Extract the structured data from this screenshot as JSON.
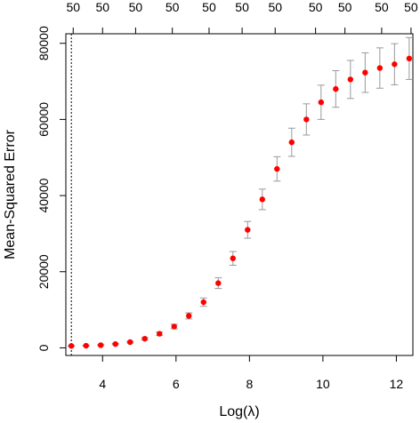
{
  "chart_data": {
    "type": "scatter",
    "subtitle": "",
    "xlabel": "Log(λ)",
    "ylabel": "Mean-Squared Error",
    "xlim": [
      3.0,
      12.45
    ],
    "ylim": [
      -2000,
      82500
    ],
    "x_ticks": [
      4,
      6,
      8,
      10,
      12
    ],
    "y_ticks": [
      0,
      20000,
      40000,
      60000,
      80000
    ],
    "x_tick_labels": [
      "4",
      "6",
      "8",
      "10",
      "12"
    ],
    "y_tick_labels": [
      "0",
      "20000",
      "40000",
      "60000",
      "80000"
    ],
    "top_axis": {
      "ticks": [
        3.2,
        4.0,
        4.9,
        5.9,
        6.9,
        7.8,
        8.7,
        9.8,
        10.6,
        11.6,
        12.4
      ],
      "labels": [
        "50",
        "50",
        "50",
        "50",
        "50",
        "50",
        "50",
        "50",
        "50",
        "50",
        "50"
      ]
    },
    "reference_line_x": 3.15,
    "point_color": "#ff0000",
    "errorbar_color": "#999999",
    "grid": false,
    "legend": "none",
    "series": [
      {
        "x": [
          3.15,
          3.55,
          3.95,
          4.35,
          4.75,
          5.15,
          5.55,
          5.95,
          6.35,
          6.75,
          7.15,
          7.55,
          7.95,
          8.35,
          8.75,
          9.15,
          9.55,
          9.95,
          10.35,
          10.75,
          11.15,
          11.55,
          11.95,
          12.35
        ],
        "y": [
          500,
          560,
          700,
          1000,
          1500,
          2400,
          3700,
          5600,
          8400,
          12000,
          17000,
          23500,
          31000,
          39000,
          47000,
          54000,
          60000,
          64500,
          68000,
          70500,
          72300,
          73500,
          74500,
          76000
        ],
        "err": [
          100,
          100,
          120,
          150,
          220,
          300,
          450,
          600,
          800,
          1100,
          1400,
          1800,
          2200,
          2700,
          3200,
          3700,
          4100,
          4500,
          4800,
          5000,
          5200,
          5300,
          5400,
          5500
        ]
      }
    ]
  }
}
